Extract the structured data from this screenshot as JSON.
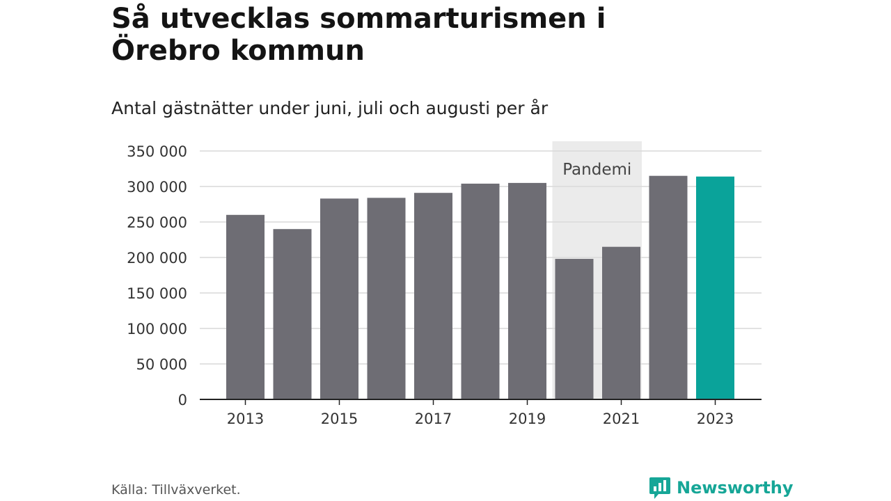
{
  "title": "Så utvecklas sommarturismen i Örebro kommun",
  "subtitle": "Antal gästnätter under juni, juli och augusti per år",
  "source": "Källa: Tillväxverket.",
  "brand": {
    "name": "Newsworthy",
    "icon": "newsworthy-logo-icon",
    "color": "#16a697"
  },
  "colors": {
    "bar": "#6e6d74",
    "highlight": "#0aa39a",
    "shade": "#ebebeb",
    "grid": "#d9d9d9",
    "axis": "#222222"
  },
  "chart_data": {
    "type": "bar",
    "categories": [
      "2013",
      "2014",
      "2015",
      "2016",
      "2017",
      "2018",
      "2019",
      "2020",
      "2021",
      "2022",
      "2023"
    ],
    "values": [
      260000,
      240000,
      283000,
      284000,
      291000,
      304000,
      305000,
      198000,
      215000,
      315000,
      314000
    ],
    "highlight_category": "2023",
    "x_tick_labels": [
      "2013",
      "2015",
      "2017",
      "2019",
      "2021",
      "2023"
    ],
    "y_ticks": [
      0,
      50000,
      100000,
      150000,
      200000,
      250000,
      300000,
      350000
    ],
    "y_tick_labels": [
      "0",
      "50 000",
      "100 000",
      "150 000",
      "200 000",
      "250 000",
      "300 000",
      "350 000"
    ],
    "ylim": [
      0,
      350000
    ],
    "xlabel": "",
    "ylabel": "",
    "annotation": {
      "label": "Pandemi",
      "from": "2020",
      "to": "2021"
    },
    "grid": true
  }
}
